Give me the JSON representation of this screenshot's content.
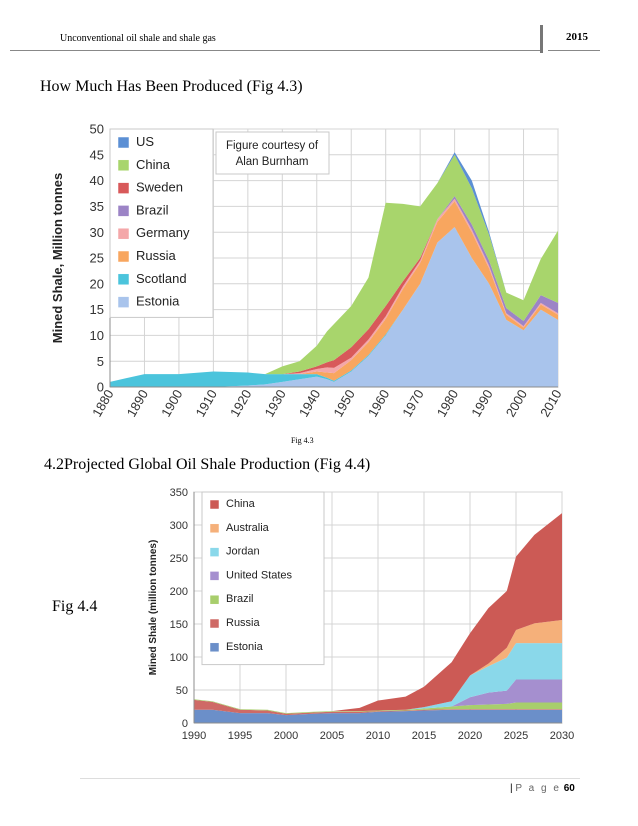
{
  "header": {
    "title": "Unconventional oil shale and shale gas",
    "year": "2015"
  },
  "section1": {
    "heading": "How Much Has Been Produced (Fig 4.3)",
    "caption": "Fig 4.3"
  },
  "section2": {
    "heading": "4.2Projected Global Oil Shale Production (Fig 4.4)",
    "side_label": "Fig 4.4"
  },
  "footer": {
    "separator": "|",
    "page_word": "P a g e",
    "page_number": "60"
  },
  "chart_data": [
    {
      "type": "area",
      "stacked": true,
      "ylabel": "Mined Shale, Million tonnes",
      "ylim": [
        0,
        50
      ],
      "xlim": [
        1880,
        2010
      ],
      "yticks": [
        0,
        5,
        10,
        15,
        20,
        25,
        30,
        35,
        40,
        45,
        50
      ],
      "xticks": [
        1880,
        1890,
        1900,
        1910,
        1920,
        1930,
        1940,
        1950,
        1960,
        1970,
        1980,
        1990,
        2000,
        2010
      ],
      "annotation": "Figure courtesy of Alan Burnham",
      "legend_placement": "top-left",
      "grid": true,
      "legend": [
        "US",
        "China",
        "Sweden",
        "Brazil",
        "Germany",
        "Russia",
        "Scotland",
        "Estonia"
      ],
      "x": [
        1880,
        1890,
        1900,
        1910,
        1920,
        1925,
        1930,
        1935,
        1940,
        1943,
        1945,
        1950,
        1955,
        1960,
        1965,
        1970,
        1975,
        1980,
        1985,
        1990,
        1995,
        2000,
        2005,
        2010
      ],
      "series": [
        {
          "name": "Estonia",
          "color": "#a9c4ec",
          "values": [
            0,
            0,
            0,
            0,
            0.3,
            0.5,
            1,
            1.5,
            2,
            1.5,
            1,
            3,
            6,
            10,
            15,
            20,
            28,
            31,
            25,
            20,
            13,
            11,
            15,
            13
          ]
        },
        {
          "name": "Scotland",
          "color": "#4bc4dc",
          "values": [
            1,
            2.5,
            2.5,
            3,
            2.5,
            2,
            1.5,
            1,
            0.5,
            0.3,
            0.2,
            0.2,
            0.2,
            0.2,
            0,
            0,
            0,
            0,
            0,
            0,
            0,
            0,
            0,
            0
          ]
        },
        {
          "name": "Russia",
          "color": "#f8a65f",
          "values": [
            0,
            0,
            0,
            0,
            0,
            0,
            0,
            0,
            0.5,
            1,
            1.5,
            2,
            2.5,
            3,
            4,
            4,
            4,
            5,
            5,
            3,
            1,
            0.5,
            1,
            1
          ]
        },
        {
          "name": "Germany",
          "color": "#f4a7a9",
          "values": [
            0,
            0,
            0,
            0,
            0,
            0,
            0,
            0.2,
            0.5,
            1,
            1,
            0.5,
            0.5,
            0.5,
            0.5,
            0.5,
            0.5,
            0.5,
            0.5,
            0.5,
            0.3,
            0.3,
            0.3,
            0.3
          ]
        },
        {
          "name": "Brazil",
          "color": "#9c84c6",
          "values": [
            0,
            0,
            0,
            0,
            0,
            0,
            0,
            0,
            0,
            0,
            0,
            0,
            0,
            0,
            0,
            0,
            0,
            0.5,
            1,
            1,
            1,
            1,
            1.5,
            2
          ]
        },
        {
          "name": "Sweden",
          "color": "#d8595a",
          "values": [
            0,
            0,
            0,
            0,
            0,
            0,
            0,
            0.3,
            0.5,
            1,
            1.5,
            2,
            2,
            2,
            1,
            0.5,
            0,
            0,
            0,
            0,
            0,
            0,
            0,
            0
          ]
        },
        {
          "name": "China",
          "color": "#a8d56c",
          "values": [
            0,
            0,
            0,
            0,
            0,
            0,
            1.5,
            2,
            4,
            6,
            7,
            8,
            10,
            20,
            15,
            10,
            7,
            8,
            7,
            5,
            3,
            4,
            7,
            14
          ]
        },
        {
          "name": "US",
          "color": "#5b8fd4",
          "values": [
            0,
            0,
            0,
            0,
            0,
            0,
            0,
            0,
            0,
            0,
            0,
            0,
            0,
            0,
            0,
            0,
            0,
            0.5,
            1.5,
            0.5,
            0,
            0,
            0,
            0
          ]
        }
      ]
    },
    {
      "type": "area",
      "stacked": true,
      "ylabel": "Mined Shale (million tonnes)",
      "ylim": [
        0,
        350
      ],
      "xlim": [
        1990,
        2030
      ],
      "yticks": [
        0,
        50,
        100,
        150,
        200,
        250,
        300,
        350
      ],
      "xticks": [
        1990,
        1995,
        2000,
        2005,
        2010,
        2015,
        2020,
        2025,
        2030
      ],
      "legend_placement": "top-left",
      "grid": true,
      "legend": [
        "China",
        "Australia",
        "Jordan",
        "United States",
        "Brazil",
        "Russia",
        "Estonia"
      ],
      "x": [
        1990,
        1992,
        1995,
        1998,
        2000,
        2003,
        2005,
        2008,
        2010,
        2013,
        2015,
        2018,
        2020,
        2022,
        2024,
        2025,
        2027,
        2030
      ],
      "series": [
        {
          "name": "Estonia",
          "color": "#6b8fc9",
          "values": [
            20,
            20,
            15,
            15,
            12,
            14,
            15,
            15,
            17,
            18,
            19,
            20,
            20,
            20,
            20,
            20,
            20,
            20
          ]
        },
        {
          "name": "Russia",
          "color": "#cf6a66",
          "values": [
            15,
            12,
            5,
            4,
            2,
            2,
            2,
            2,
            1,
            1,
            1,
            1,
            1,
            1,
            1,
            1,
            1,
            1
          ]
        },
        {
          "name": "Brazil",
          "color": "#a8ce6c",
          "values": [
            1,
            1,
            1,
            1,
            1,
            1,
            1,
            1,
            1,
            1,
            2,
            4,
            6,
            7,
            8,
            10,
            10,
            10
          ]
        },
        {
          "name": "United States",
          "color": "#a58fcf",
          "values": [
            0,
            0,
            0,
            0,
            0,
            0,
            0,
            0,
            0,
            0,
            0,
            0,
            12,
            18,
            20,
            35,
            35,
            35
          ]
        },
        {
          "name": "Jordan",
          "color": "#8ad8ea",
          "values": [
            0,
            0,
            0,
            0,
            0,
            0,
            0,
            0,
            0,
            0,
            2,
            8,
            33,
            40,
            50,
            55,
            55,
            55
          ]
        },
        {
          "name": "Australia",
          "color": "#f5b07a",
          "values": [
            0,
            0,
            0,
            0,
            0,
            0,
            0,
            0,
            0,
            0,
            0,
            0,
            0,
            4,
            15,
            20,
            30,
            35
          ]
        },
        {
          "name": "China",
          "color": "#cc5a55",
          "values": [
            0,
            0,
            0,
            0,
            0,
            0,
            0,
            5,
            15,
            20,
            31,
            59,
            64,
            84,
            86,
            111,
            134,
            162
          ]
        }
      ]
    }
  ]
}
